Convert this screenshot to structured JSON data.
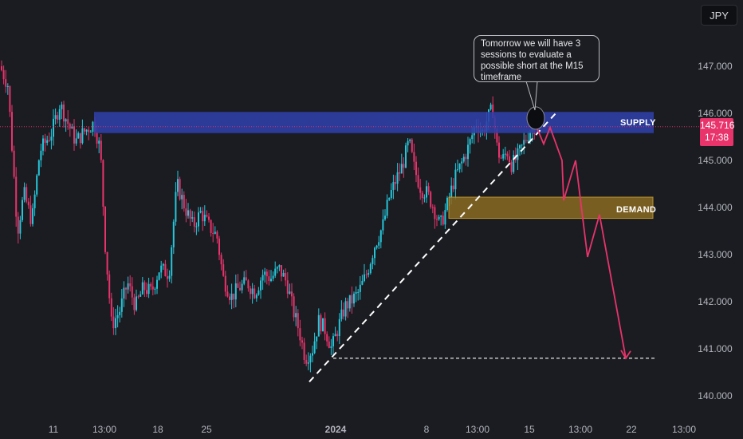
{
  "currency": "JPY",
  "current_price": {
    "value": "145.716",
    "countdown": "17:38"
  },
  "annotation": {
    "text": "Tomorrow we will have 3 sessions to evaluate a possible short at the M15 timeframe"
  },
  "zones": {
    "supply": {
      "label": "SUPPLY",
      "price_low": 145.58,
      "price_high": 146.03
    },
    "demand": {
      "label": "DEMAND",
      "price_low": 143.77,
      "price_high": 144.22
    }
  },
  "colors": {
    "background": "#1b1c21",
    "bull": "#26c6da",
    "bear": "#e8336b",
    "supply_fill": "#2f3fa8",
    "demand_fill": "#8a6a22",
    "demand_border": "#d9a934",
    "projection": "#e8336b",
    "trendline": "#ffffff"
  },
  "chart_data": {
    "type": "candlestick",
    "y_axis": {
      "ticks": [
        147,
        146,
        145,
        144,
        143,
        142,
        141,
        140
      ],
      "tick_labels": [
        "147.000",
        "146.000",
        "145.000",
        "144.000",
        "143.000",
        "142.000",
        "141.000",
        "140.000"
      ],
      "ylim": [
        139.8,
        147.55
      ]
    },
    "x_axis": {
      "tick_labels": [
        "11",
        "13:00",
        "18",
        "25",
        "2024",
        "8",
        "13:00",
        "15",
        "13:00",
        "22",
        "13:00"
      ]
    },
    "series_path": [
      [
        0,
        147.0
      ],
      [
        10,
        146.6
      ],
      [
        15,
        145.3
      ],
      [
        22,
        143.5
      ],
      [
        30,
        144.3
      ],
      [
        40,
        143.7
      ],
      [
        50,
        145.2
      ],
      [
        65,
        145.6
      ],
      [
        75,
        146.2
      ],
      [
        85,
        145.8
      ],
      [
        95,
        145.4
      ],
      [
        105,
        145.6
      ],
      [
        118,
        145.8
      ],
      [
        126,
        145.2
      ],
      [
        132,
        143.2
      ],
      [
        140,
        141.5
      ],
      [
        150,
        141.8
      ],
      [
        160,
        142.4
      ],
      [
        170,
        141.9
      ],
      [
        180,
        142.3
      ],
      [
        190,
        142.2
      ],
      [
        200,
        142.7
      ],
      [
        212,
        142.6
      ],
      [
        222,
        144.5
      ],
      [
        232,
        144.0
      ],
      [
        242,
        143.6
      ],
      [
        252,
        143.9
      ],
      [
        262,
        143.6
      ],
      [
        272,
        143.4
      ],
      [
        280,
        142.5
      ],
      [
        290,
        142.1
      ],
      [
        300,
        142.3
      ],
      [
        310,
        142.4
      ],
      [
        320,
        142.2
      ],
      [
        330,
        142.6
      ],
      [
        340,
        142.5
      ],
      [
        350,
        142.7
      ],
      [
        360,
        142.4
      ],
      [
        368,
        141.8
      ],
      [
        375,
        141.4
      ],
      [
        383,
        140.8
      ],
      [
        392,
        141.0
      ],
      [
        400,
        141.6
      ],
      [
        408,
        141.4
      ],
      [
        416,
        141.0
      ],
      [
        425,
        141.5
      ],
      [
        433,
        141.9
      ],
      [
        440,
        142.0
      ],
      [
        450,
        142.2
      ],
      [
        460,
        142.6
      ],
      [
        470,
        143.2
      ],
      [
        480,
        143.6
      ],
      [
        488,
        144.2
      ],
      [
        497,
        144.6
      ],
      [
        505,
        144.9
      ],
      [
        513,
        145.4
      ],
      [
        520,
        144.8
      ],
      [
        528,
        144.4
      ],
      [
        536,
        144.3
      ],
      [
        544,
        144.0
      ],
      [
        552,
        143.6
      ],
      [
        560,
        144.0
      ],
      [
        570,
        144.6
      ],
      [
        578,
        144.9
      ],
      [
        588,
        145.3
      ],
      [
        597,
        145.8
      ],
      [
        605,
        145.6
      ],
      [
        612,
        145.9
      ],
      [
        618,
        146.1
      ],
      [
        624,
        145.2
      ],
      [
        630,
        145.0
      ],
      [
        636,
        145.2
      ],
      [
        642,
        144.9
      ],
      [
        650,
        145.1
      ],
      [
        658,
        145.4
      ],
      [
        666,
        145.7
      ],
      [
        672,
        145.75
      ]
    ],
    "projection_path": [
      [
        672,
        145.75
      ],
      [
        682,
        145.35
      ],
      [
        690,
        145.7
      ],
      [
        705,
        145.0
      ],
      [
        707,
        144.15
      ],
      [
        722,
        145.0
      ],
      [
        737,
        142.95
      ],
      [
        752,
        143.85
      ],
      [
        785,
        140.8
      ]
    ],
    "trendlines": [
      {
        "style": "dashed",
        "from": [
          388,
          140.3
        ],
        "to": [
          697,
          146.0
        ]
      },
      {
        "style": "dashed",
        "from": [
          418,
          140.8
        ],
        "to": [
          822,
          140.8
        ]
      }
    ],
    "current_price_line": 145.716,
    "highlight_circle": {
      "x": 672,
      "price": 145.9
    }
  }
}
